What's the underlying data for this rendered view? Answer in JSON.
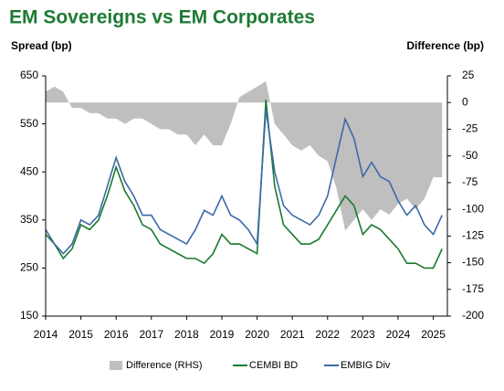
{
  "chart_data": {
    "type": "line",
    "title": "EM Sovereigns vs EM Corporates",
    "y_label": "Spread (bp)",
    "y2_label": "Difference (bp)",
    "x": [
      2014,
      2014.25,
      2014.5,
      2014.75,
      2015,
      2015.25,
      2015.5,
      2015.75,
      2016,
      2016.25,
      2016.5,
      2016.75,
      2017,
      2017.25,
      2017.5,
      2017.75,
      2018,
      2018.25,
      2018.5,
      2018.75,
      2019,
      2019.25,
      2019.5,
      2019.75,
      2020,
      2020.25,
      2020.5,
      2020.75,
      2021,
      2021.25,
      2021.5,
      2021.75,
      2022,
      2022.25,
      2022.5,
      2022.75,
      2023,
      2023.25,
      2023.5,
      2023.75,
      2024,
      2024.25,
      2024.5,
      2024.75,
      2025,
      2025.25
    ],
    "xlim": [
      2014,
      2025.4
    ],
    "xticks": [
      2014,
      2015,
      2016,
      2017,
      2018,
      2019,
      2020,
      2021,
      2022,
      2023,
      2024,
      2025
    ],
    "ylim": [
      150,
      650
    ],
    "yticks": [
      150,
      250,
      350,
      450,
      550,
      650
    ],
    "y2lim": [
      -200,
      25
    ],
    "y2ticks": [
      25,
      0,
      -25,
      -50,
      -75,
      -100,
      -125,
      -150,
      -175,
      -200
    ],
    "series": [
      {
        "name": "Difference (RHS)",
        "color": "#bfbfbf",
        "axis": "y2",
        "kind": "area",
        "values": [
          10,
          15,
          10,
          -5,
          -5,
          -10,
          -10,
          -15,
          -15,
          -20,
          -15,
          -15,
          -20,
          -25,
          -25,
          -30,
          -30,
          -40,
          -30,
          -40,
          -40,
          -20,
          5,
          10,
          15,
          20,
          -20,
          -30,
          -40,
          -45,
          -40,
          -50,
          -55,
          -80,
          -120,
          -110,
          -100,
          -110,
          -100,
          -105,
          -95,
          -90,
          -100,
          -90,
          -70,
          -70
        ]
      },
      {
        "name": "CEMBI BD",
        "color": "#1a7a2e",
        "values": [
          320,
          300,
          270,
          290,
          340,
          330,
          350,
          400,
          460,
          410,
          380,
          340,
          330,
          300,
          290,
          280,
          270,
          270,
          260,
          280,
          320,
          300,
          300,
          290,
          280,
          600,
          420,
          340,
          320,
          300,
          300,
          310,
          340,
          370,
          400,
          380,
          320,
          340,
          330,
          310,
          290,
          260,
          260,
          250,
          250,
          290
        ]
      },
      {
        "name": "EMBIG Div",
        "color": "#3a6aa8",
        "values": [
          330,
          300,
          280,
          300,
          350,
          340,
          360,
          420,
          480,
          430,
          400,
          360,
          360,
          330,
          320,
          310,
          300,
          330,
          370,
          360,
          400,
          360,
          350,
          330,
          300,
          580,
          450,
          380,
          360,
          350,
          340,
          360,
          400,
          480,
          560,
          520,
          440,
          470,
          440,
          430,
          390,
          360,
          380,
          340,
          320,
          360
        ]
      }
    ]
  }
}
